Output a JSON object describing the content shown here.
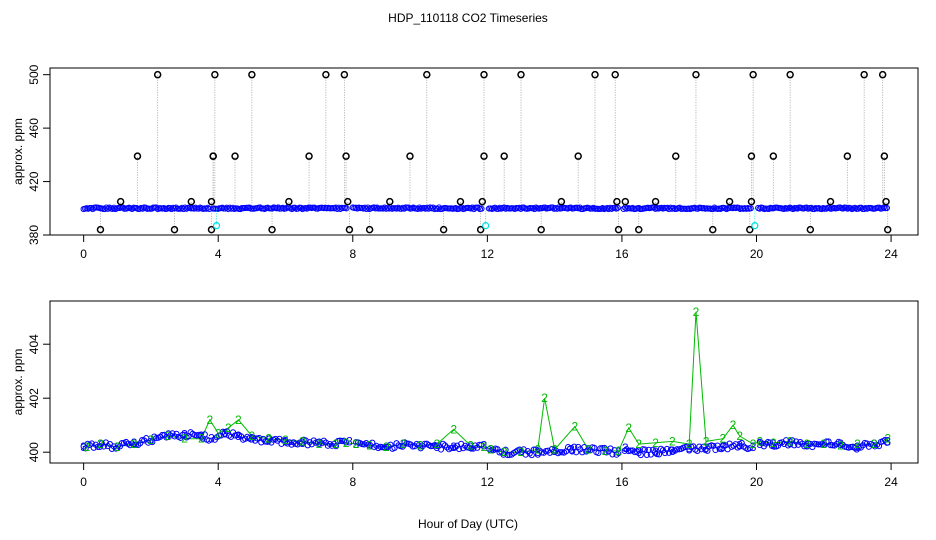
{
  "title": "HDP_110118  CO2 Timeseries",
  "xlabel": "Hour of Day (UTC)",
  "colors": {
    "blue": "#0000ff",
    "green": "#00bb00",
    "cyan": "#00e0e0",
    "black": "#000000",
    "gray": "#999999"
  },
  "chart_data": [
    {
      "type": "scatter",
      "name": "top-panel",
      "title": "HDP_110118  CO2 Timeseries",
      "xlabel": "",
      "ylabel": "approx. ppm",
      "xlim": [
        -1,
        24.8
      ],
      "ylim": [
        380,
        505
      ],
      "xticks": [
        0,
        4,
        8,
        12,
        16,
        20,
        24
      ],
      "yticks": [
        380,
        420,
        460,
        500
      ],
      "baseline": 400,
      "series": [
        {
          "name": "blue baseline",
          "color": "#0000ff",
          "y": 400,
          "x_segments": [
            [
              0.0,
              3.75
            ],
            [
              3.85,
              7.85
            ],
            [
              8.0,
              11.85
            ],
            [
              12.05,
              15.9
            ],
            [
              16.05,
              19.85
            ],
            [
              20.05,
              23.9
            ]
          ]
        },
        {
          "name": "black spikes",
          "color": "#000000",
          "x": [
            0.5,
            1.1,
            1.6,
            2.2,
            2.7,
            3.2,
            3.8,
            3.8,
            3.85,
            3.9,
            3.85,
            4.5,
            5.0,
            5.6,
            6.1,
            6.7,
            7.2,
            7.75,
            7.8,
            7.85,
            7.9,
            8.5,
            9.1,
            9.7,
            10.2,
            10.7,
            11.2,
            11.8,
            11.85,
            11.9,
            11.9,
            12.5,
            13.0,
            13.6,
            14.2,
            14.7,
            15.2,
            15.8,
            15.85,
            15.9,
            16.1,
            16.5,
            17.0,
            17.6,
            18.2,
            18.7,
            19.2,
            19.8,
            19.85,
            19.85,
            19.9,
            20.5,
            21.0,
            21.6,
            22.2,
            22.7,
            23.2,
            23.75,
            23.8,
            23.85,
            23.9
          ],
          "y": [
            384,
            405,
            439,
            500,
            384,
            405,
            384,
            405,
            439,
            500,
            439,
            439,
            500,
            384,
            405,
            439,
            500,
            500,
            439,
            405,
            384,
            384,
            405,
            439,
            500,
            384,
            405,
            384,
            405,
            439,
            500,
            439,
            500,
            384,
            405,
            439,
            500,
            500,
            405,
            384,
            405,
            384,
            405,
            439,
            500,
            384,
            405,
            384,
            405,
            439,
            500,
            439,
            500,
            384,
            405,
            439,
            500,
            500,
            439,
            405,
            384
          ]
        },
        {
          "name": "cyan points",
          "color": "#00e0e0",
          "x": [
            3.95,
            11.95,
            19.95
          ],
          "y": [
            387,
            387,
            387
          ]
        }
      ]
    },
    {
      "type": "scatter",
      "name": "bottom-panel",
      "xlabel": "Hour of Day (UTC)",
      "ylabel": "approx. ppm",
      "xlim": [
        -1,
        24.8
      ],
      "ylim": [
        399.6,
        405.6
      ],
      "xticks": [
        0,
        4,
        8,
        12,
        16,
        20,
        24
      ],
      "yticks": [
        400,
        402,
        404
      ],
      "series": [
        {
          "name": "3",
          "marker": "3",
          "color": "#0000ff",
          "x": [
            0.0,
            0.5,
            1.0,
            1.5,
            2.0,
            2.5,
            3.0,
            3.5,
            3.8,
            4.2,
            4.6,
            5.0,
            5.5,
            6.0,
            6.5,
            7.0,
            7.5,
            7.9,
            8.1,
            8.5,
            9.0,
            9.5,
            10.0,
            10.5,
            11.0,
            11.5,
            11.9,
            12.1,
            12.5,
            13.0,
            13.5,
            14.0,
            14.5,
            15.0,
            15.5,
            15.9,
            16.1,
            16.5,
            17.0,
            17.5,
            18.0,
            18.5,
            19.0,
            19.5,
            19.9,
            20.1,
            20.5,
            21.0,
            21.5,
            22.0,
            22.5,
            23.0,
            23.5,
            23.9
          ],
          "y": [
            400.2,
            400.3,
            400.2,
            400.35,
            400.45,
            400.6,
            400.65,
            400.6,
            400.5,
            400.7,
            400.6,
            400.5,
            400.45,
            400.4,
            400.35,
            400.35,
            400.3,
            400.4,
            400.3,
            400.25,
            400.2,
            400.3,
            400.25,
            400.2,
            400.2,
            400.2,
            400.25,
            400.1,
            400.0,
            400.0,
            400.0,
            400.05,
            400.1,
            400.1,
            400.05,
            400.0,
            400.15,
            400.0,
            400.0,
            400.05,
            400.1,
            400.15,
            400.2,
            400.25,
            400.2,
            400.3,
            400.3,
            400.35,
            400.25,
            400.3,
            400.3,
            400.2,
            400.3,
            400.4
          ]
        },
        {
          "name": "2",
          "marker": "2",
          "color": "#00bb00",
          "x": [
            0.1,
            0.5,
            1.0,
            1.5,
            2.0,
            2.5,
            3.0,
            3.5,
            3.75,
            4.0,
            4.3,
            4.6,
            5.0,
            5.5,
            6.0,
            6.5,
            7.0,
            7.5,
            7.8,
            8.1,
            8.5,
            9.0,
            9.5,
            10.0,
            10.5,
            11.0,
            11.5,
            11.9,
            12.1,
            12.5,
            13.0,
            13.5,
            13.7,
            14.0,
            14.6,
            15.0,
            15.5,
            15.9,
            16.2,
            16.5,
            17.0,
            17.5,
            18.0,
            18.2,
            18.5,
            19.0,
            19.3,
            19.5,
            19.9,
            20.1,
            20.5,
            21.0,
            21.5,
            22.0,
            22.5,
            23.0,
            23.5,
            23.9
          ],
          "y": [
            400.2,
            400.3,
            400.2,
            400.3,
            400.45,
            400.6,
            400.5,
            400.5,
            401.2,
            400.7,
            400.9,
            401.2,
            400.6,
            400.5,
            400.45,
            400.4,
            400.3,
            400.3,
            400.35,
            400.3,
            400.25,
            400.2,
            400.3,
            400.25,
            400.3,
            400.85,
            400.25,
            400.2,
            400.1,
            400.0,
            400.0,
            400.1,
            402.0,
            400.1,
            400.95,
            400.1,
            400.05,
            400.05,
            400.9,
            400.3,
            400.35,
            400.4,
            400.3,
            405.2,
            400.4,
            400.5,
            401.0,
            400.6,
            400.3,
            400.4,
            400.35,
            400.4,
            400.3,
            400.3,
            400.25,
            400.3,
            400.3,
            400.5
          ]
        }
      ]
    }
  ]
}
